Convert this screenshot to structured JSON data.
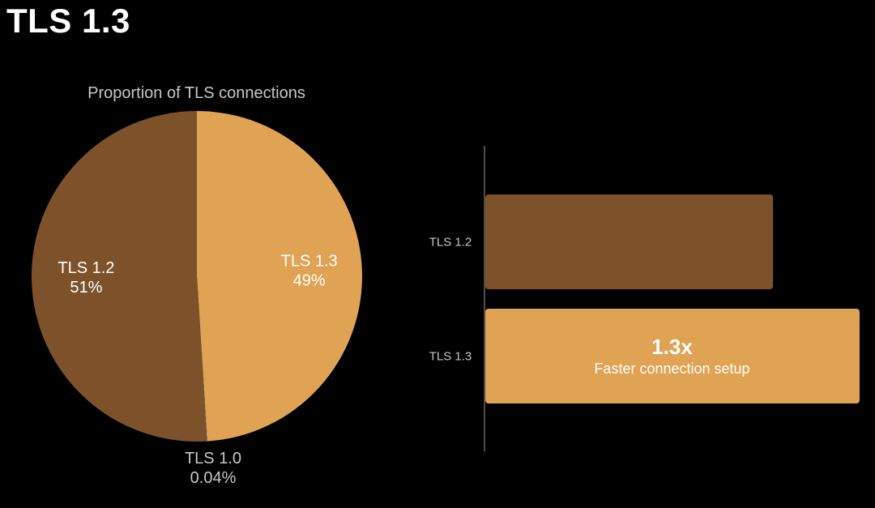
{
  "page": {
    "title": "TLS 1.3"
  },
  "colors": {
    "background": "#000000",
    "tls12": "#7d522b",
    "tls13": "#e0a253",
    "tls10": "#b0b0b0",
    "text_light": "#ffffff",
    "text_muted": "#c7c7c7",
    "axis": "#9a9a9a"
  },
  "chart_data": [
    {
      "type": "pie",
      "title": "Proportion of TLS connections",
      "slices": [
        {
          "label": "TLS 1.3",
          "value": 49,
          "value_label": "49%",
          "color": "#e0a253"
        },
        {
          "label": "TLS 1.0",
          "value": 0.04,
          "value_label": "0.04%",
          "color": "#b0b0b0"
        },
        {
          "label": "TLS 1.2",
          "value": 51,
          "value_label": "51%",
          "color": "#7d522b"
        }
      ]
    },
    {
      "type": "bar",
      "orientation": "horizontal",
      "categories": [
        "TLS 1.2",
        "TLS 1.3"
      ],
      "values": [
        1.0,
        1.3
      ],
      "colors": [
        "#7d522b",
        "#e0a253"
      ],
      "annotation": {
        "category": "TLS 1.3",
        "value_text": "1.3x",
        "text": "Faster connection setup"
      }
    }
  ]
}
